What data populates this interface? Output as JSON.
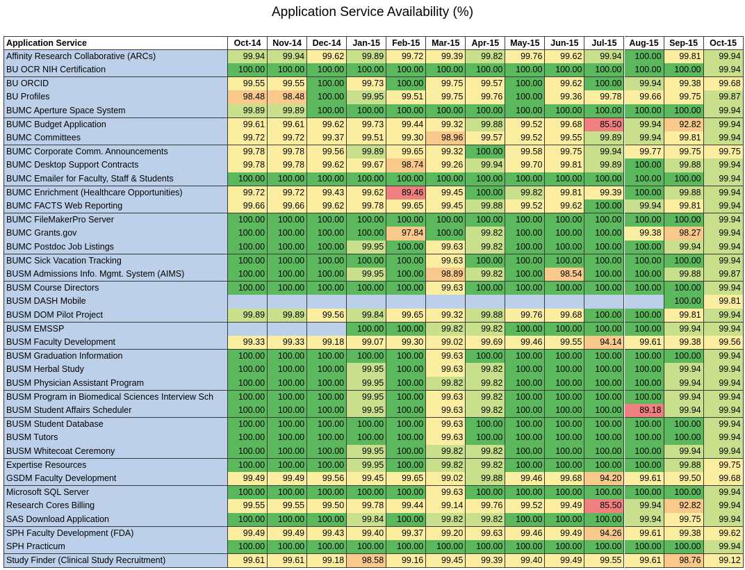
{
  "chart_data": {
    "type": "table",
    "title": "Application Service Availability (%)",
    "row_header": "Application Service",
    "columns": [
      "Oct-14",
      "Nov-14",
      "Dec-14",
      "Jan-15",
      "Feb-15",
      "Mar-15",
      "Apr-15",
      "May-15",
      "Jun-15",
      "Jul-15",
      "Aug-15",
      "Sep-15",
      "Oct-15"
    ],
    "rows": [
      {
        "name": "Affinity Research Collaborative (ARCs)",
        "values": [
          "99.94",
          "99.94",
          "99.62",
          "99.89",
          "99.72",
          "99.39",
          "99.82",
          "99.76",
          "99.62",
          "99.94",
          "100.00",
          "99.81",
          "99.94"
        ]
      },
      {
        "name": "BU OCR NIH Certification",
        "values": [
          "100.00",
          "100.00",
          "100.00",
          "100.00",
          "100.00",
          "100.00",
          "100.00",
          "100.00",
          "100.00",
          "100.00",
          "100.00",
          "100.00",
          "99.94"
        ]
      },
      {
        "name": "BU ORCID",
        "values": [
          "99.55",
          "99.55",
          "100.00",
          "99.73",
          "100.00",
          "99.75",
          "99.57",
          "100.00",
          "99.62",
          "100.00",
          "99.94",
          "99.38",
          "99.68"
        ]
      },
      {
        "name": "BU Profiles",
        "values": [
          "98.48",
          "98.48",
          "100.00",
          "99.95",
          "99.51",
          "99.75",
          "99.76",
          "100.00",
          "99.36",
          "99.78",
          "99.66",
          "99.75",
          "99.87"
        ]
      },
      {
        "name": "BUMC Aperture Space System",
        "values": [
          "99.89",
          "99.89",
          "100.00",
          "100.00",
          "100.00",
          "100.00",
          "100.00",
          "100.00",
          "100.00",
          "100.00",
          "100.00",
          "100.00",
          "99.94"
        ]
      },
      {
        "name": "BUMC Budget Application",
        "values": [
          "99.61",
          "99.61",
          "99.62",
          "99.73",
          "99.44",
          "99.32",
          "99.88",
          "99.52",
          "99.68",
          "85.50",
          "99.94",
          "92.82",
          "99.94"
        ]
      },
      {
        "name": "BUMC Committees",
        "values": [
          "99.72",
          "99.72",
          "99.37",
          "99.51",
          "99.30",
          "98.96",
          "99.57",
          "99.52",
          "99.55",
          "99.89",
          "99.94",
          "99.81",
          "99.94"
        ]
      },
      {
        "name": "BUMC Corporate Comm. Announcements",
        "values": [
          "99.78",
          "99.78",
          "99.56",
          "99.89",
          "99.65",
          "99.32",
          "100.00",
          "99.58",
          "99.75",
          "99.94",
          "99.77",
          "99.75",
          "99.75"
        ]
      },
      {
        "name": "BUMC Desktop Support Contracts",
        "values": [
          "99.78",
          "99.78",
          "99.62",
          "99.67",
          "98.74",
          "99.26",
          "99.94",
          "99.70",
          "99.81",
          "99.89",
          "100.00",
          "99.88",
          "99.94"
        ]
      },
      {
        "name": "BUMC Emailer for Faculty, Staff & Students",
        "values": [
          "100.00",
          "100.00",
          "100.00",
          "100.00",
          "100.00",
          "100.00",
          "100.00",
          "100.00",
          "100.00",
          "100.00",
          "100.00",
          "100.00",
          "99.94"
        ]
      },
      {
        "name": "BUMC Enrichment (Healthcare Opportunities)",
        "values": [
          "99.72",
          "99.72",
          "99.43",
          "99.62",
          "89.46",
          "99.45",
          "100.00",
          "99.82",
          "99.81",
          "99.39",
          "100.00",
          "99.88",
          "99.94"
        ]
      },
      {
        "name": "BUMC FACTS Web Reporting",
        "values": [
          "99.66",
          "99.66",
          "99.62",
          "99.78",
          "99.65",
          "99.45",
          "99.88",
          "99.52",
          "99.62",
          "100.00",
          "99.94",
          "99.81",
          "99.94"
        ]
      },
      {
        "name": "BUMC FileMakerPro Server",
        "values": [
          "100.00",
          "100.00",
          "100.00",
          "100.00",
          "100.00",
          "100.00",
          "100.00",
          "100.00",
          "100.00",
          "100.00",
          "100.00",
          "100.00",
          "99.94"
        ]
      },
      {
        "name": "BUMC Grants.gov",
        "values": [
          "100.00",
          "100.00",
          "100.00",
          "100.00",
          "97.84",
          "100.00",
          "99.82",
          "100.00",
          "100.00",
          "100.00",
          "99.38",
          "98.27",
          "99.94"
        ]
      },
      {
        "name": "BUMC Postdoc Job Listings",
        "values": [
          "100.00",
          "100.00",
          "100.00",
          "99.95",
          "100.00",
          "99.63",
          "99.82",
          "100.00",
          "100.00",
          "100.00",
          "100.00",
          "99.94",
          "99.94"
        ]
      },
      {
        "name": "BUMC Sick Vacation Tracking",
        "values": [
          "100.00",
          "100.00",
          "100.00",
          "100.00",
          "100.00",
          "99.63",
          "100.00",
          "100.00",
          "100.00",
          "100.00",
          "100.00",
          "100.00",
          "99.94"
        ]
      },
      {
        "name": "BUSM Admissions Info. Mgmt. System (AIMS)",
        "values": [
          "100.00",
          "100.00",
          "100.00",
          "99.95",
          "100.00",
          "98.89",
          "99.82",
          "100.00",
          "98.54",
          "100.00",
          "100.00",
          "99.88",
          "99.87"
        ]
      },
      {
        "name": "BUSM Course Directors",
        "values": [
          "100.00",
          "100.00",
          "100.00",
          "100.00",
          "100.00",
          "99.63",
          "100.00",
          "100.00",
          "100.00",
          "100.00",
          "100.00",
          "100.00",
          "99.94"
        ]
      },
      {
        "name": "BUSM DASH Mobile",
        "values": [
          "",
          "",
          "",
          "",
          "",
          "",
          "",
          "",
          "",
          "",
          "",
          "100.00",
          "99.81"
        ]
      },
      {
        "name": "BUSM DOM Pilot Project",
        "values": [
          "99.89",
          "99.89",
          "99.56",
          "99.84",
          "99.65",
          "99.32",
          "99.88",
          "99.76",
          "99.68",
          "100.00",
          "100.00",
          "99.81",
          "99.94"
        ]
      },
      {
        "name": "BUSM EMSSP",
        "values": [
          "",
          "",
          "",
          "100.00",
          "100.00",
          "99.82",
          "99.82",
          "100.00",
          "100.00",
          "100.00",
          "100.00",
          "99.94",
          "99.94"
        ]
      },
      {
        "name": "BUSM Faculty Development",
        "values": [
          "99.33",
          "99.33",
          "99.18",
          "99.07",
          "99.30",
          "99.02",
          "99.69",
          "99.46",
          "99.55",
          "94.14",
          "99.61",
          "99.38",
          "99.56"
        ]
      },
      {
        "name": "BUSM Graduation Information",
        "values": [
          "100.00",
          "100.00",
          "100.00",
          "100.00",
          "100.00",
          "99.63",
          "100.00",
          "100.00",
          "100.00",
          "100.00",
          "100.00",
          "100.00",
          "99.94"
        ]
      },
      {
        "name": "BUSM Herbal Study",
        "values": [
          "100.00",
          "100.00",
          "100.00",
          "99.95",
          "100.00",
          "99.63",
          "99.82",
          "100.00",
          "100.00",
          "100.00",
          "100.00",
          "99.94",
          "99.94"
        ]
      },
      {
        "name": "BUSM Physician Assistant Program",
        "values": [
          "100.00",
          "100.00",
          "100.00",
          "99.95",
          "100.00",
          "99.82",
          "99.82",
          "100.00",
          "100.00",
          "100.00",
          "100.00",
          "99.94",
          "99.94"
        ]
      },
      {
        "name": "BUSM Program in Biomedical Sciences Interview Sch",
        "values": [
          "100.00",
          "100.00",
          "100.00",
          "99.95",
          "100.00",
          "99.63",
          "99.82",
          "100.00",
          "100.00",
          "100.00",
          "100.00",
          "99.94",
          "99.94"
        ]
      },
      {
        "name": "BUSM Student Affairs Scheduler",
        "values": [
          "100.00",
          "100.00",
          "100.00",
          "99.95",
          "100.00",
          "99.63",
          "99.82",
          "100.00",
          "100.00",
          "100.00",
          "89.18",
          "99.94",
          "99.94"
        ]
      },
      {
        "name": "BUSM Student Database",
        "values": [
          "100.00",
          "100.00",
          "100.00",
          "100.00",
          "100.00",
          "99.63",
          "100.00",
          "100.00",
          "100.00",
          "100.00",
          "100.00",
          "100.00",
          "99.94"
        ]
      },
      {
        "name": "BUSM Tutors",
        "values": [
          "100.00",
          "100.00",
          "100.00",
          "100.00",
          "100.00",
          "99.63",
          "100.00",
          "100.00",
          "100.00",
          "100.00",
          "100.00",
          "100.00",
          "99.94"
        ]
      },
      {
        "name": "BUSM Whitecoat Ceremony",
        "values": [
          "100.00",
          "100.00",
          "100.00",
          "99.95",
          "100.00",
          "99.82",
          "99.82",
          "100.00",
          "100.00",
          "100.00",
          "100.00",
          "99.94",
          "99.94"
        ]
      },
      {
        "name": "Expertise Resources",
        "values": [
          "100.00",
          "100.00",
          "100.00",
          "99.95",
          "100.00",
          "99.82",
          "99.82",
          "100.00",
          "100.00",
          "100.00",
          "100.00",
          "99.88",
          "99.75"
        ]
      },
      {
        "name": "GSDM Faculty Development",
        "values": [
          "99.49",
          "99.49",
          "99.56",
          "99.45",
          "99.65",
          "99.02",
          "99.88",
          "99.46",
          "99.68",
          "94.20",
          "99.61",
          "99.50",
          "99.68"
        ]
      },
      {
        "name": "Microsoft SQL Server",
        "values": [
          "100.00",
          "100.00",
          "100.00",
          "100.00",
          "100.00",
          "99.63",
          "100.00",
          "100.00",
          "100.00",
          "100.00",
          "100.00",
          "100.00",
          "99.94"
        ]
      },
      {
        "name": "Research Cores Billing",
        "values": [
          "99.55",
          "99.55",
          "99.50",
          "99.78",
          "99.44",
          "99.14",
          "99.76",
          "99.52",
          "99.49",
          "85.50",
          "99.94",
          "92.82",
          "99.94"
        ]
      },
      {
        "name": "SAS Download Application",
        "values": [
          "100.00",
          "100.00",
          "100.00",
          "99.84",
          "100.00",
          "99.82",
          "99.82",
          "100.00",
          "100.00",
          "100.00",
          "99.94",
          "99.75",
          "99.94"
        ]
      },
      {
        "name": "SPH Faculty Development (FDA)",
        "values": [
          "99.49",
          "99.49",
          "99.43",
          "99.40",
          "99.37",
          "99.20",
          "99.63",
          "99.46",
          "99.49",
          "94.26",
          "99.61",
          "99.38",
          "99.62"
        ]
      },
      {
        "name": "SPH Practicum",
        "values": [
          "100.00",
          "100.00",
          "100.00",
          "100.00",
          "100.00",
          "100.00",
          "100.00",
          "100.00",
          "100.00",
          "100.00",
          "100.00",
          "100.00",
          "99.94"
        ]
      },
      {
        "name": "Study Finder (Clinical Study Recruitment)",
        "values": [
          "99.61",
          "99.61",
          "99.18",
          "98.58",
          "99.16",
          "99.45",
          "99.39",
          "99.40",
          "99.49",
          "99.55",
          "99.61",
          "98.76",
          "99.12"
        ]
      }
    ]
  },
  "colors": {
    "name_cell": "#bdd0ea",
    "empty_cell": "#bdd0ea",
    "full": "#5cb85c",
    "high": "#c8df8c",
    "mid": "#fbeea0",
    "low": "#f9c98c",
    "critical": "#f08080"
  }
}
